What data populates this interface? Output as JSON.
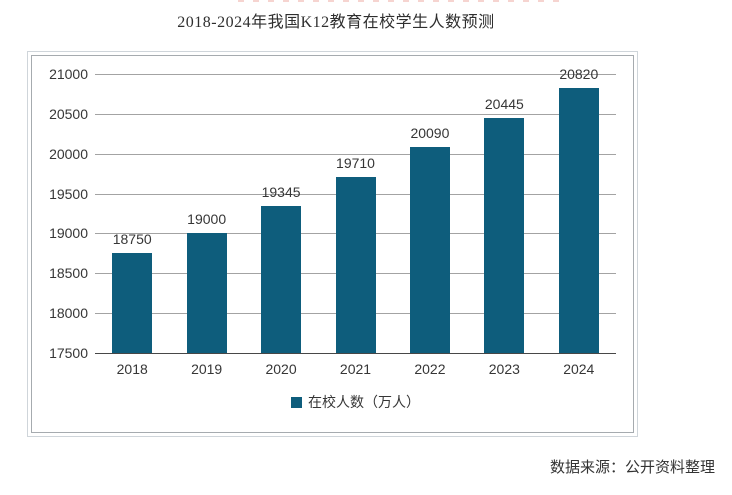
{
  "page": {
    "source": "数据来源：公开资料整理"
  },
  "chart_data": {
    "type": "bar",
    "title": "2018-2024年我国K12教育在校学生人数预测",
    "categories": [
      "2018",
      "2019",
      "2020",
      "2021",
      "2022",
      "2023",
      "2024"
    ],
    "values": [
      18750,
      19000,
      19345,
      19710,
      20090,
      20445,
      20820
    ],
    "series_name": "在校人数（万人）",
    "legend_position": "bottom",
    "xlabel": "",
    "ylabel": "",
    "ylim": [
      17500,
      21000
    ],
    "yticks": [
      17500,
      18000,
      18500,
      19000,
      19500,
      20000,
      20500,
      21000
    ],
    "grid": true,
    "data_labels": true,
    "colors": {
      "bar": "#0e5d7c",
      "gridline": "#a3a3a3",
      "axis_line": "#474747",
      "text": "#363636"
    }
  }
}
